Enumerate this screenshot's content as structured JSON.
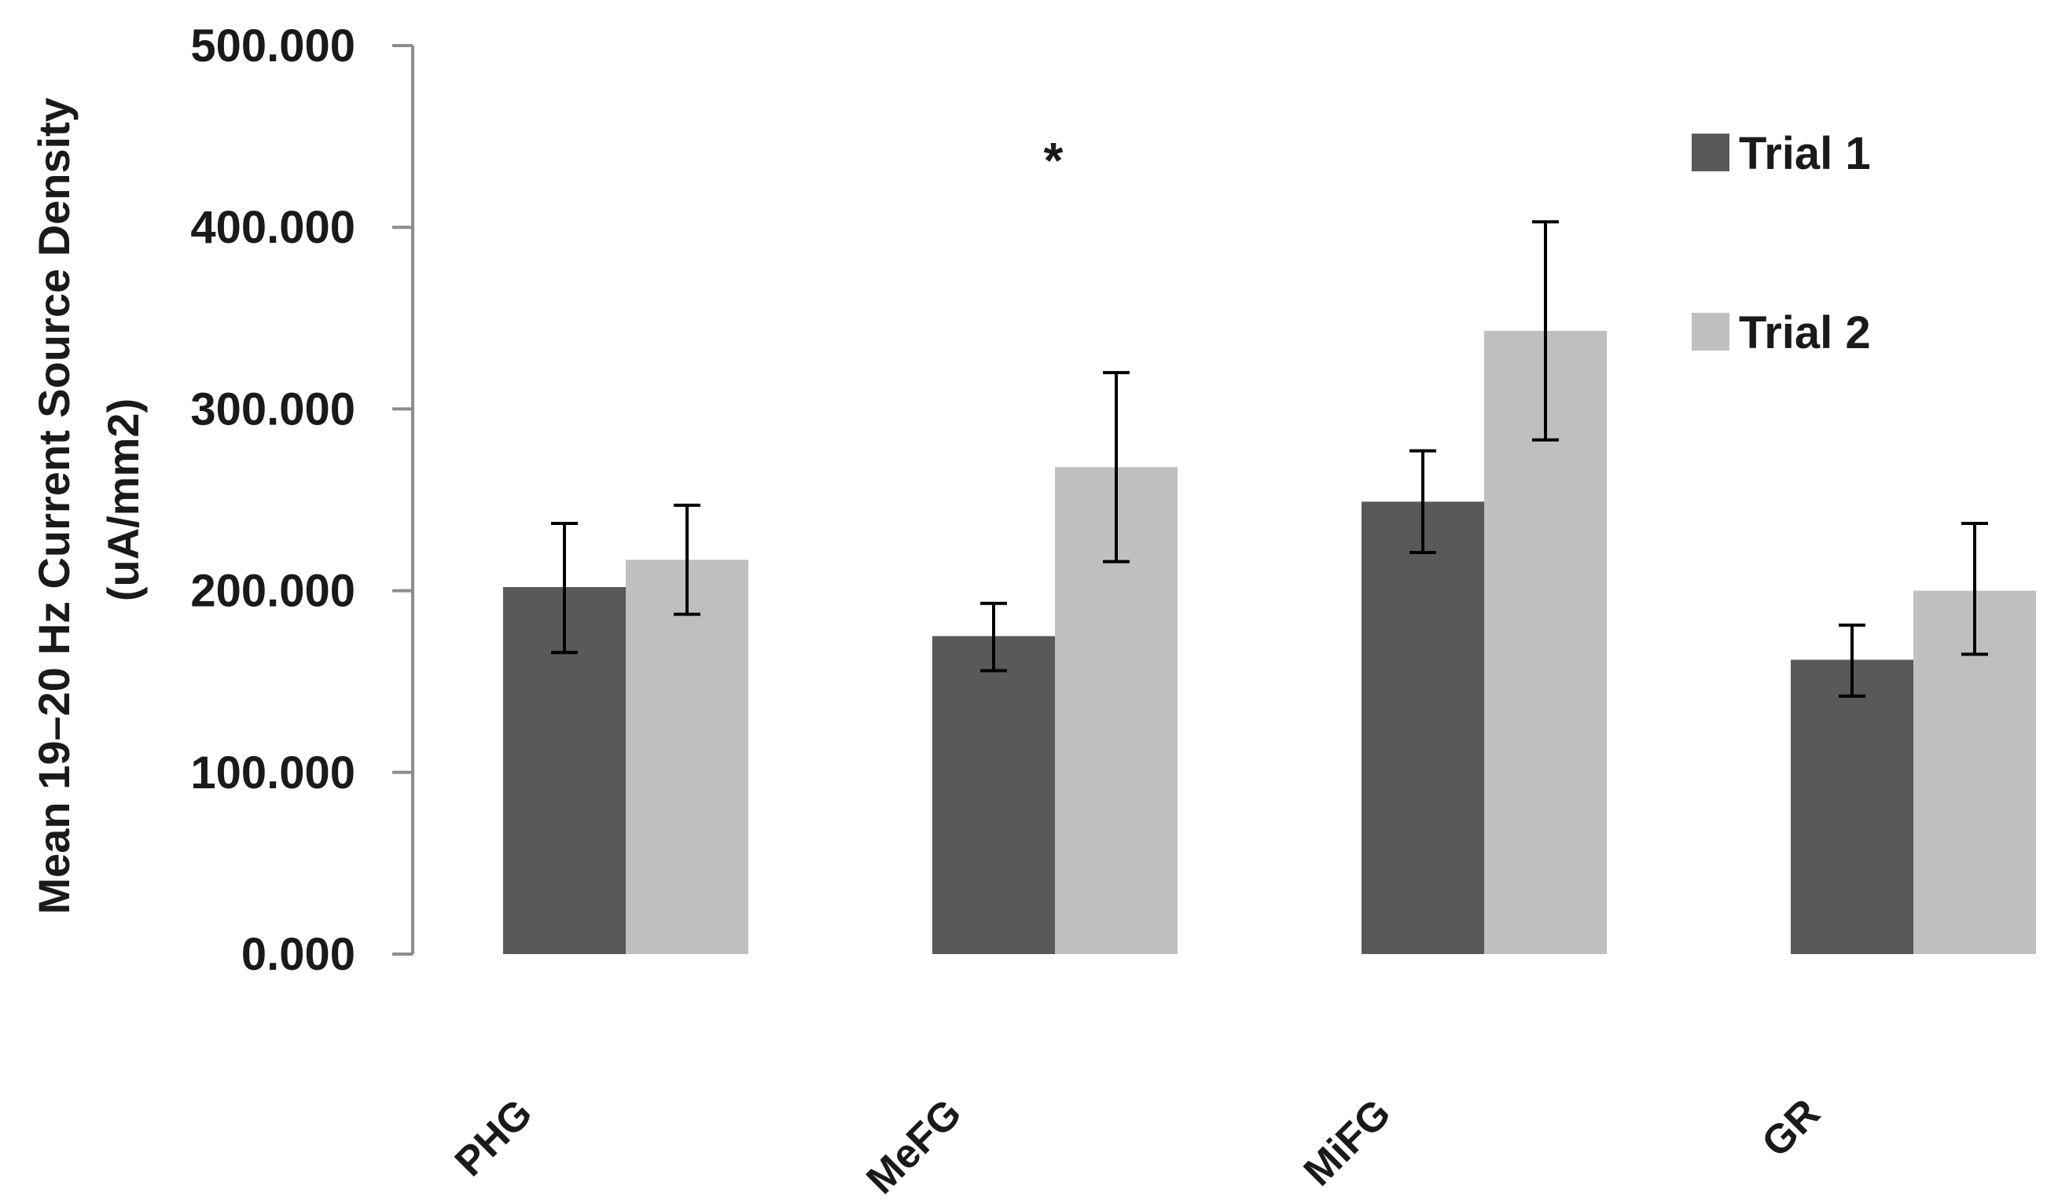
{
  "chart_data": {
    "type": "bar",
    "title": "",
    "ylabel_line1": "Mean 19–20 Hz Current Source Density",
    "ylabel_line2": "(uA/mm2)",
    "xlabel": "",
    "ylim": [
      0,
      500
    ],
    "yticks": [
      "0.000",
      "100.000",
      "200.000",
      "300.000",
      "400.000",
      "500.000"
    ],
    "categories": [
      "PHG",
      "MeFG",
      "MiFG",
      "GR"
    ],
    "series": [
      {
        "name": "Trial 1",
        "color": "#595959",
        "values": [
          202,
          175,
          249,
          162
        ],
        "err_low": [
          166,
          156,
          221,
          142
        ],
        "err_high": [
          237,
          193,
          277,
          181
        ]
      },
      {
        "name": "Trial 2",
        "color": "#bfbfbf",
        "values": [
          217,
          268,
          343,
          200
        ],
        "err_low": [
          187,
          216,
          283,
          165
        ],
        "err_high": [
          247,
          320,
          403,
          237
        ]
      }
    ],
    "annotations": [
      {
        "text": "*",
        "category": "MeFG"
      }
    ],
    "legend": {
      "position": "top-right",
      "items": [
        "Trial 1",
        "Trial 2"
      ]
    }
  }
}
